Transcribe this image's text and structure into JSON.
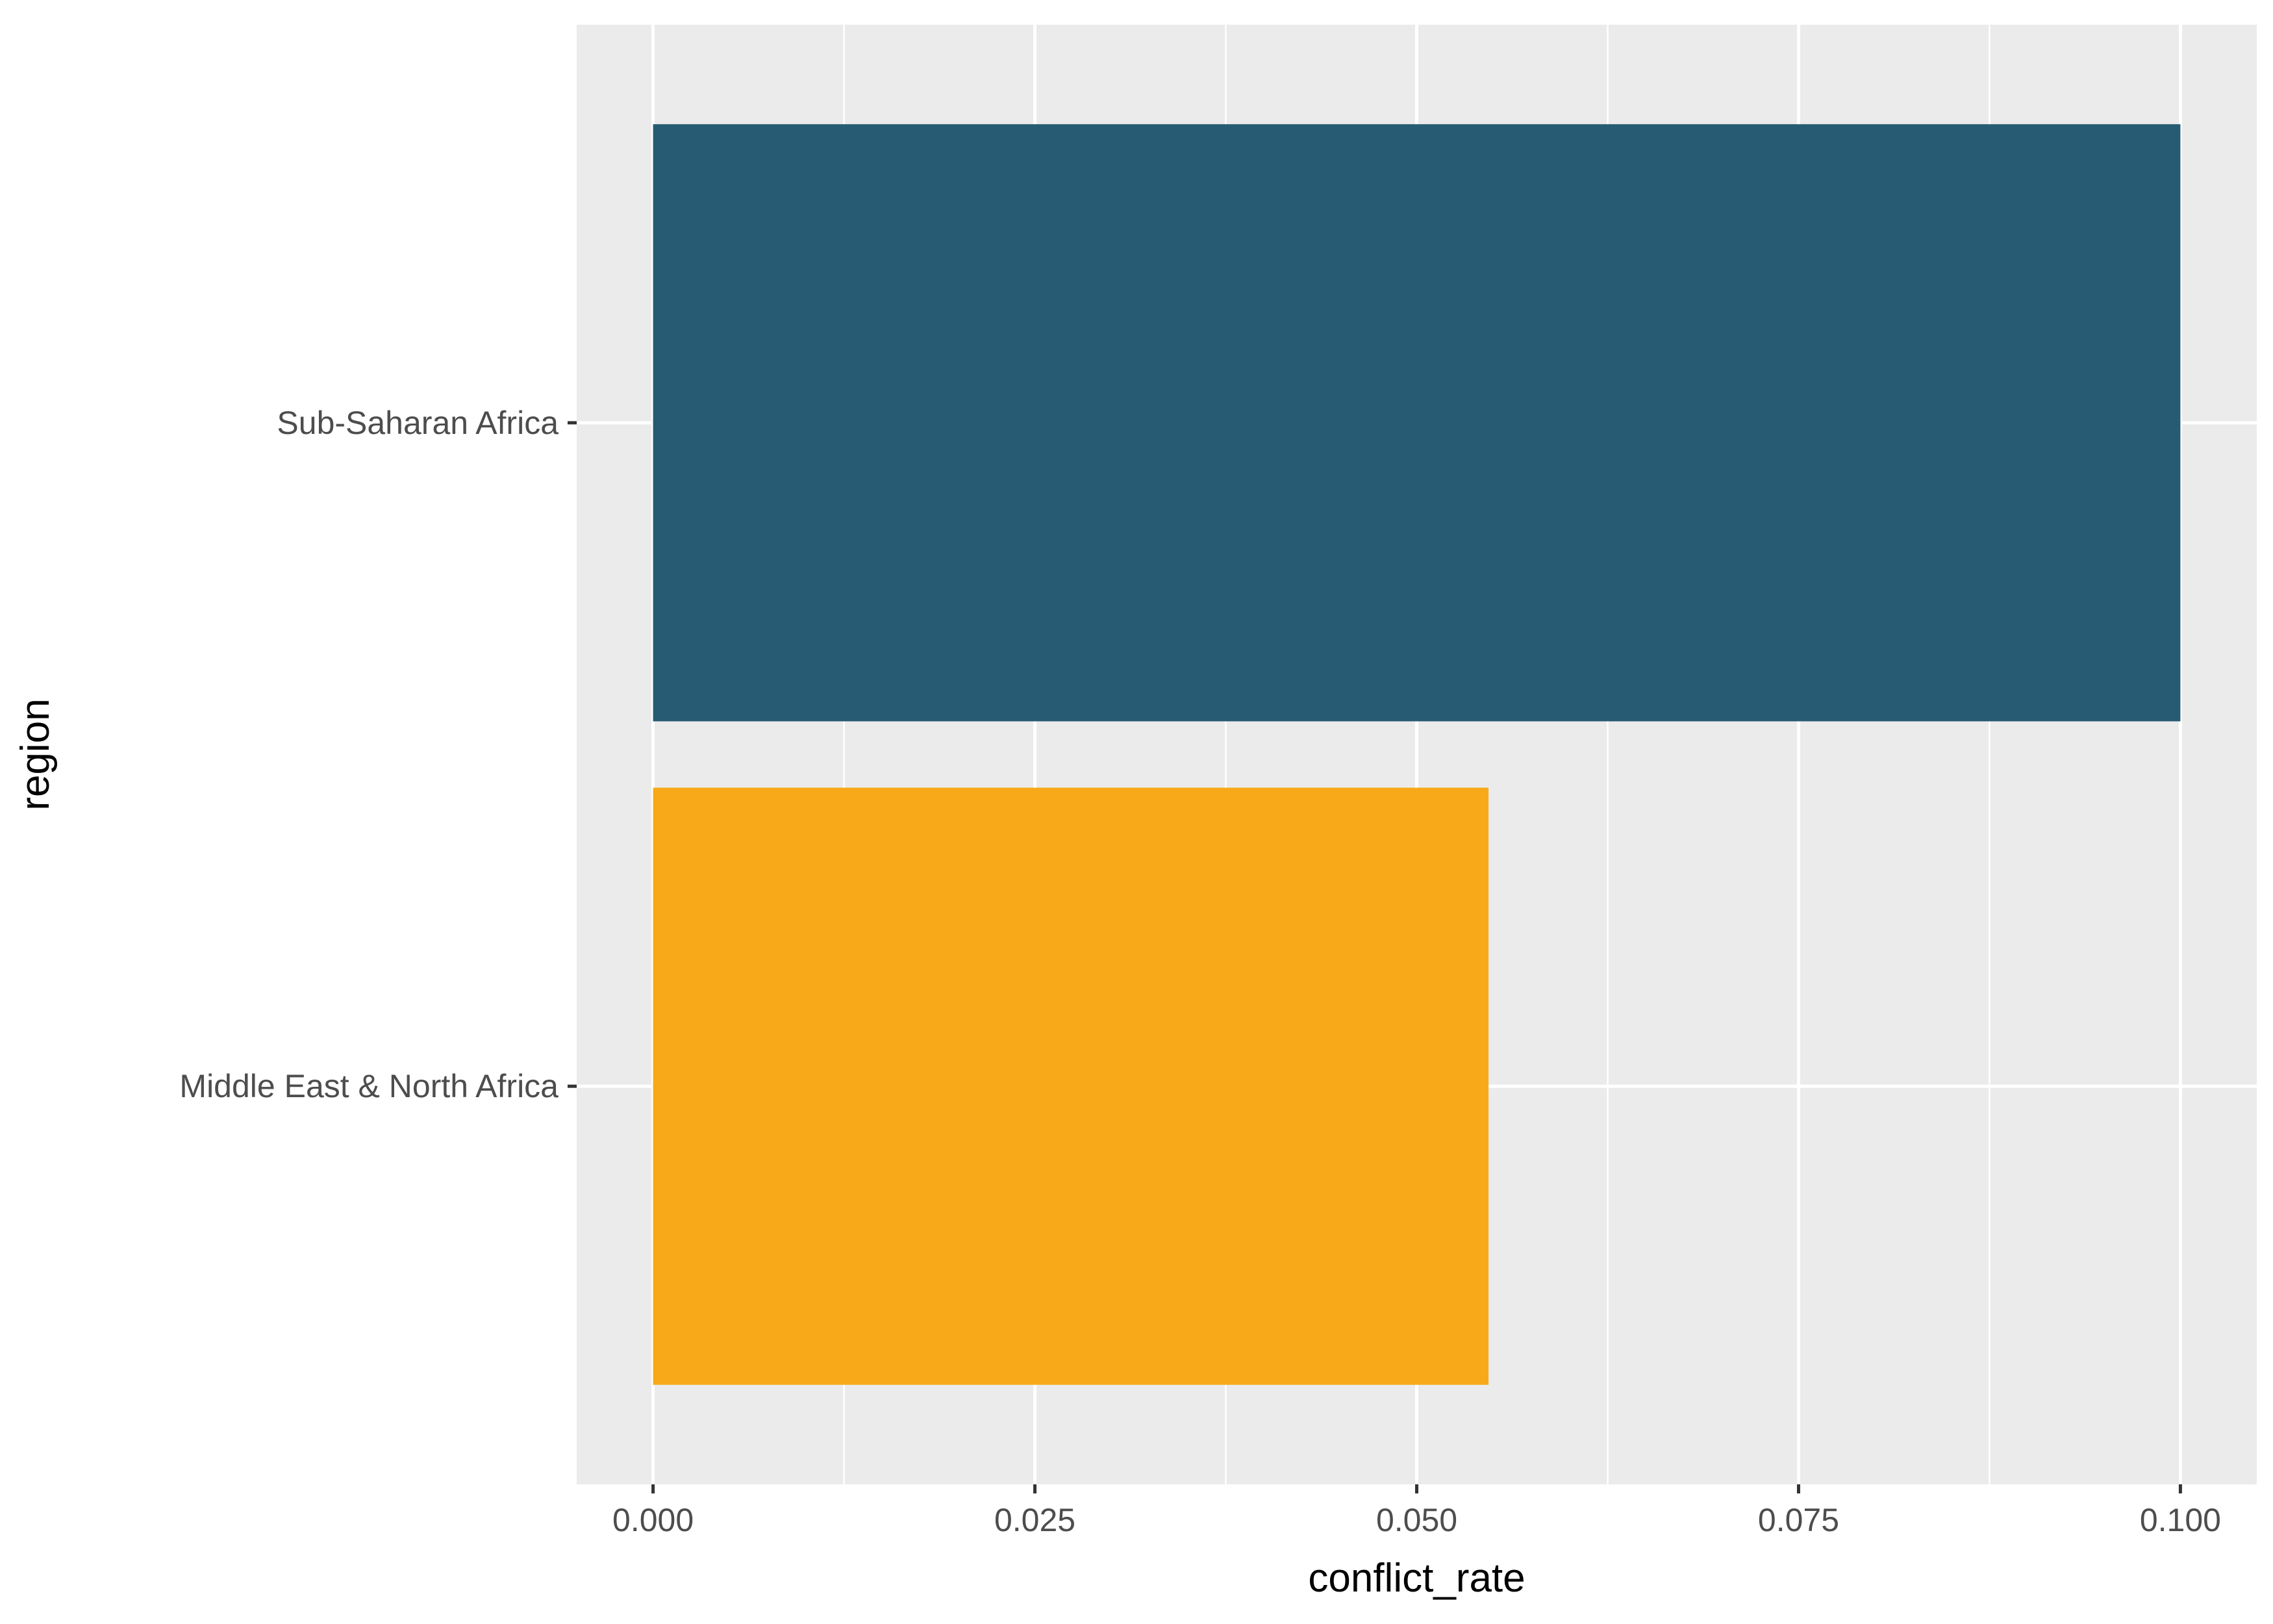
{
  "chart_data": {
    "type": "bar",
    "orientation": "horizontal",
    "categories": [
      "Middle East & North Africa",
      "Sub-Saharan Africa"
    ],
    "values": [
      0.0547,
      0.1
    ],
    "bar_colors": [
      "#F8A919",
      "#275B73"
    ],
    "xlabel": "conflict_rate",
    "ylabel": "region",
    "xlim": [
      -0.005,
      0.105
    ],
    "x_ticks": [
      0.0,
      0.025,
      0.05,
      0.075,
      0.1
    ],
    "x_tick_labels": [
      "0.000",
      "0.025",
      "0.050",
      "0.075",
      "0.100"
    ],
    "grid": true,
    "panel_background": "#EBEBEB",
    "grid_color": "#FFFFFF"
  }
}
